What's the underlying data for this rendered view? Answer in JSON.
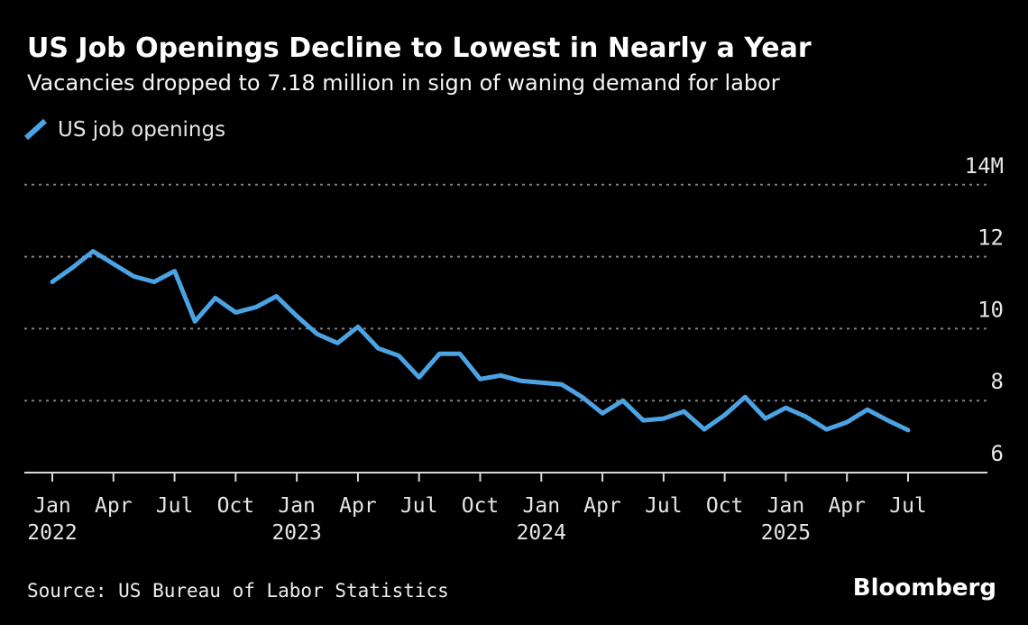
{
  "header": {
    "title": "US Job Openings Decline to Lowest in Nearly a Year",
    "subtitle": "Vacancies dropped to 7.18 million in sign of waning demand for labor"
  },
  "legend": {
    "label": "US job openings",
    "marker": "blue-slash"
  },
  "footer": {
    "source": "Source: US Bureau of Labor Statistics",
    "brand": "Bloomberg"
  },
  "colors": {
    "background": "#000000",
    "accent_line": "#4ba3e3",
    "grid": "#808080",
    "axis": "#d9d9d9",
    "text_primary": "#ffffff",
    "text_secondary": "#e6e6e6"
  },
  "chart_data": {
    "type": "line",
    "title": "US Job Openings Decline to Lowest in Nearly a Year",
    "subtitle": "Vacancies dropped to 7.18 million in sign of waning demand for labor",
    "unit": "millions of job openings",
    "ylim": [
      6,
      14
    ],
    "grid": "horizontal-dashed",
    "legend_position": "top-left",
    "y_ticks": [
      {
        "value": 14,
        "label": "14M"
      },
      {
        "value": 12,
        "label": "12"
      },
      {
        "value": 10,
        "label": "10"
      },
      {
        "value": 8,
        "label": "8"
      },
      {
        "value": 6,
        "label": "6"
      }
    ],
    "x_ticks": [
      {
        "month_index": 0,
        "label": "Jan",
        "year_label": "2022"
      },
      {
        "month_index": 3,
        "label": "Apr"
      },
      {
        "month_index": 6,
        "label": "Jul"
      },
      {
        "month_index": 9,
        "label": "Oct"
      },
      {
        "month_index": 12,
        "label": "Jan",
        "year_label": "2023"
      },
      {
        "month_index": 15,
        "label": "Apr"
      },
      {
        "month_index": 18,
        "label": "Jul"
      },
      {
        "month_index": 21,
        "label": "Oct"
      },
      {
        "month_index": 24,
        "label": "Jan",
        "year_label": "2024"
      },
      {
        "month_index": 27,
        "label": "Apr"
      },
      {
        "month_index": 30,
        "label": "Jul"
      },
      {
        "month_index": 33,
        "label": "Oct"
      },
      {
        "month_index": 36,
        "label": "Jan",
        "year_label": "2025"
      },
      {
        "month_index": 39,
        "label": "Apr"
      },
      {
        "month_index": 42,
        "label": "Jul"
      }
    ],
    "series": [
      {
        "name": "US job openings",
        "color": "#4ba3e3",
        "months": [
          "2022-01",
          "2022-02",
          "2022-03",
          "2022-04",
          "2022-05",
          "2022-06",
          "2022-07",
          "2022-08",
          "2022-09",
          "2022-10",
          "2022-11",
          "2022-12",
          "2023-01",
          "2023-02",
          "2023-03",
          "2023-04",
          "2023-05",
          "2023-06",
          "2023-07",
          "2023-08",
          "2023-09",
          "2023-10",
          "2023-11",
          "2023-12",
          "2024-01",
          "2024-02",
          "2024-03",
          "2024-04",
          "2024-05",
          "2024-06",
          "2024-07",
          "2024-08",
          "2024-09",
          "2024-10",
          "2024-11",
          "2024-12",
          "2025-01",
          "2025-02",
          "2025-03",
          "2025-04",
          "2025-05",
          "2025-06",
          "2025-07"
        ],
        "values": [
          11.3,
          11.7,
          12.15,
          11.8,
          11.45,
          11.3,
          11.6,
          10.2,
          10.85,
          10.45,
          10.6,
          10.9,
          10.35,
          9.85,
          9.6,
          10.05,
          9.45,
          9.25,
          8.65,
          9.3,
          9.3,
          8.6,
          8.7,
          8.55,
          8.5,
          8.45,
          8.1,
          7.65,
          8.0,
          7.45,
          7.5,
          7.7,
          7.2,
          7.6,
          8.1,
          7.5,
          7.8,
          7.55,
          7.2,
          7.4,
          7.75,
          7.45,
          7.18
        ]
      }
    ]
  }
}
